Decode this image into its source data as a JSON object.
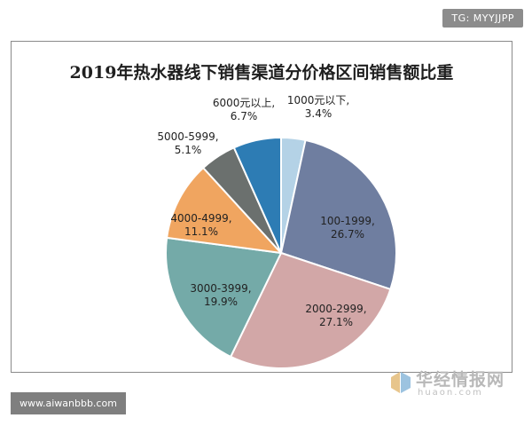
{
  "watermark": {
    "tag": "TG: MYYJJPP",
    "url": "www.aiwanbbb.com"
  },
  "logo": {
    "name": "华经情报网",
    "domain": "huaon.com"
  },
  "chart_data": {
    "type": "pie",
    "title": "2019年热水器线下销售渠道分价格区间销售额比重",
    "slices": [
      {
        "label": "1000元以下,",
        "value": 3.4,
        "value_label": "3.4%",
        "color": "#b4d2e6"
      },
      {
        "label": "100-1999,",
        "value": 26.7,
        "value_label": "26.7%",
        "color": "#6f7ea0"
      },
      {
        "label": "2000-2999,",
        "value": 27.1,
        "value_label": "27.1%",
        "color": "#d2a7a7"
      },
      {
        "label": "3000-3999,",
        "value": 19.9,
        "value_label": "19.9%",
        "color": "#74aaa8"
      },
      {
        "label": "4000-4999,",
        "value": 11.1,
        "value_label": "11.1%",
        "color": "#f0a560"
      },
      {
        "label": "5000-5999,",
        "value": 5.1,
        "value_label": "5.1%",
        "color": "#6b706e"
      },
      {
        "label": "6000元以上,",
        "value": 6.7,
        "value_label": "6.7%",
        "color": "#2d7cb4"
      }
    ]
  }
}
